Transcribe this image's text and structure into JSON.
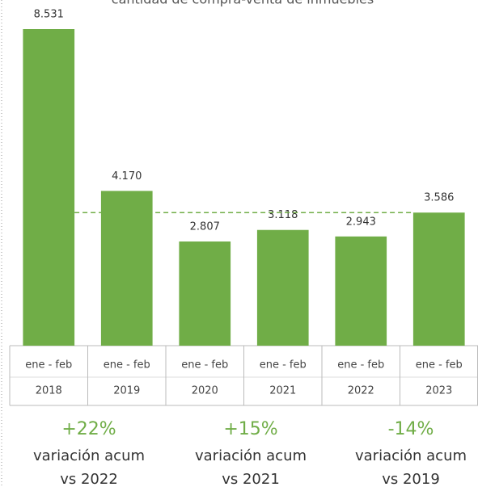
{
  "chart_data": {
    "type": "bar",
    "title": "cantidad de compra-venta de inmuebles",
    "categories": [
      [
        "ene - feb",
        "2018"
      ],
      [
        "ene - feb",
        "2019"
      ],
      [
        "ene - feb",
        "2020"
      ],
      [
        "ene - feb",
        "2021"
      ],
      [
        "ene - feb",
        "2022"
      ],
      [
        "ene - feb",
        "2023"
      ]
    ],
    "values": [
      8531,
      4170,
      2807,
      3118,
      2943,
      3586
    ],
    "value_labels": [
      "8.531",
      "4.170",
      "2.807",
      "3.118",
      "2.943",
      "3.586"
    ],
    "color": "#70ad47",
    "ylim": [
      0,
      8531
    ],
    "reference_line": 3586,
    "annotations": [
      {
        "change": "+22%",
        "text": "variación acum",
        "vs": "vs 2022"
      },
      {
        "change": "+15%",
        "text": "variación acum",
        "vs": "vs 2021"
      },
      {
        "change": "-14%",
        "text": "variación acum",
        "vs": "vs 2019"
      }
    ]
  }
}
